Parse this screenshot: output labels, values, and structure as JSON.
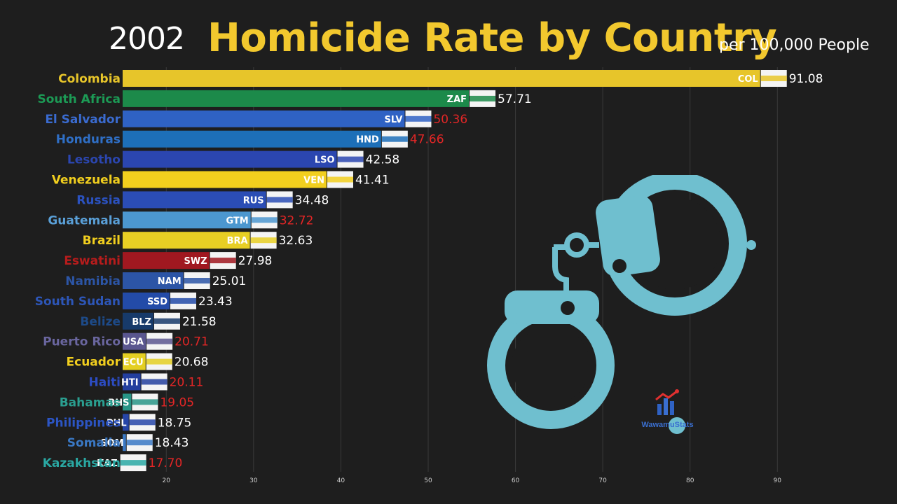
{
  "header": {
    "year": "2002",
    "title": "Homicide Rate by Country",
    "subtitle": "per 100,000 People"
  },
  "watermark": {
    "label": "WawamuStats",
    "icon": "bar-chart-logo-icon"
  },
  "decoration": {
    "icon": "handcuffs-icon",
    "color": "#6fbfcf"
  },
  "chart_data": {
    "type": "bar",
    "orientation": "horizontal",
    "title": "Homicide Rate by Country",
    "subtitle": "per 100,000 People",
    "xlim": [
      15,
      95
    ],
    "xticks": [
      20,
      30,
      40,
      50,
      60,
      70,
      80,
      90
    ],
    "grid": true,
    "categories": [
      "Colombia",
      "South Africa",
      "El Salvador",
      "Honduras",
      "Lesotho",
      "Venezuela",
      "Russia",
      "Guatemala",
      "Brazil",
      "Eswatini",
      "Namibia",
      "South Sudan",
      "Belize",
      "Puerto Rico",
      "Ecuador",
      "Haiti",
      "Bahamas",
      "Philippines",
      "Somalia",
      "Kazakhstan"
    ],
    "codes": [
      "COL",
      "ZAF",
      "SLV",
      "HND",
      "LSO",
      "VEN",
      "RUS",
      "GTM",
      "BRA",
      "SWZ",
      "NAM",
      "SSD",
      "BLZ",
      "USA",
      "ECU",
      "HTI",
      "BHS",
      "PHL",
      "SOM",
      "KAZ"
    ],
    "values": [
      91.08,
      57.71,
      50.36,
      47.66,
      42.58,
      41.41,
      34.48,
      32.72,
      32.63,
      27.98,
      25.01,
      23.43,
      21.58,
      20.71,
      20.68,
      20.11,
      19.05,
      18.75,
      18.43,
      17.7
    ],
    "value_labels": [
      "91.08",
      "57.71",
      "50.36",
      "47.66",
      "42.58",
      "41.41",
      "34.48",
      "32.72",
      "32.63",
      "27.98",
      "25.01",
      "23.43",
      "21.58",
      "20.71",
      "20.68",
      "20.11",
      "19.05",
      "18.75",
      "18.43",
      "17.70"
    ],
    "bar_colors": [
      "#e7c52a",
      "#1c8a4a",
      "#2f62c4",
      "#1d6fb8",
      "#2b46b0",
      "#f2cf1e",
      "#2b4db5",
      "#4c97cf",
      "#e8cf24",
      "#a01820",
      "#2c55a6",
      "#234ba8",
      "#173a6a",
      "#5a568f",
      "#e4cf22",
      "#233f9e",
      "#289587",
      "#2645a8",
      "#3a78c4",
      "#2aa8a3"
    ],
    "label_colors": [
      "#e7c52a",
      "#1c9a55",
      "#3a6bd0",
      "#2f6fc6",
      "#2b46b0",
      "#f2cf1e",
      "#2b52c0",
      "#5aa0d8",
      "#f2cf1e",
      "#b71c1c",
      "#2c55a6",
      "#2d56b8",
      "#1d4a88",
      "#6a669f",
      "#f2cf1e",
      "#2c4cc2",
      "#2a9f90",
      "#2c55c4",
      "#3a78c4",
      "#2aa8a3"
    ],
    "value_colors": [
      "#ffffff",
      "#ffffff",
      "#e32626",
      "#e32626",
      "#ffffff",
      "#ffffff",
      "#ffffff",
      "#e32626",
      "#ffffff",
      "#ffffff",
      "#ffffff",
      "#ffffff",
      "#ffffff",
      "#e32626",
      "#ffffff",
      "#e32626",
      "#e32626",
      "#ffffff",
      "#ffffff",
      "#e32626"
    ]
  }
}
